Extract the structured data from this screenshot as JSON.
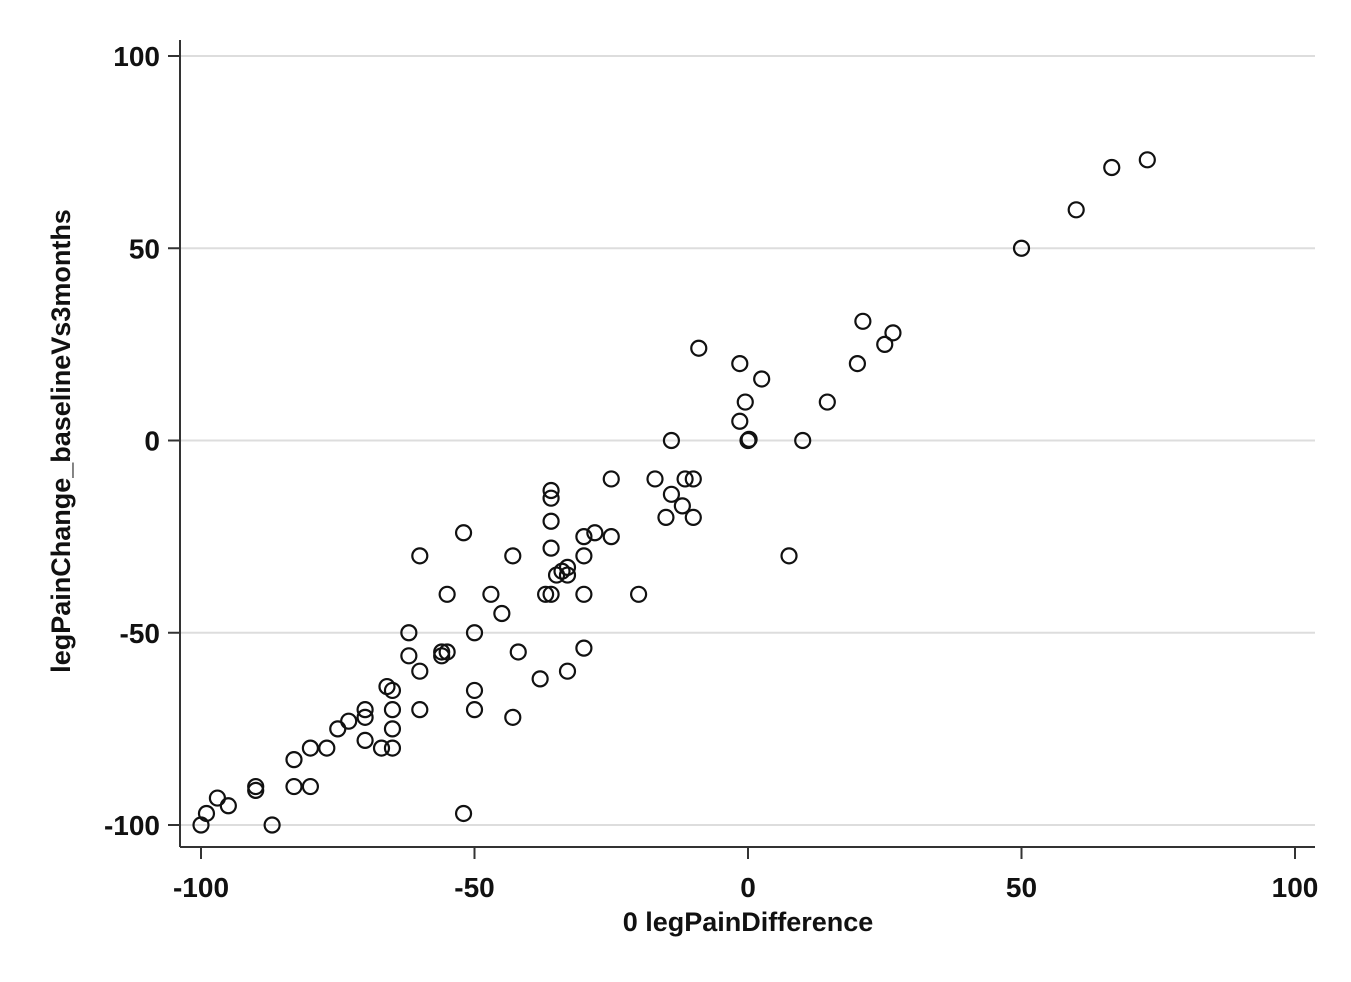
{
  "chart_data": {
    "type": "scatter",
    "title": "",
    "xlabel": "0 legPainDifference",
    "ylabel": "legPainChange_baselineVs3months",
    "xlim": [
      -100,
      100
    ],
    "ylim": [
      -100,
      100
    ],
    "x_ticks": [
      "-100",
      "-50",
      "0",
      "50",
      "100"
    ],
    "y_ticks": [
      "-100",
      "-50",
      "0",
      "50",
      "100"
    ],
    "grid": "horizontal",
    "marker": "hollow-circle",
    "colors": {
      "marker": "#111111",
      "grid": "#dddddd",
      "axis": "#333333"
    },
    "points": [
      {
        "x": -100,
        "y": -100
      },
      {
        "x": -99,
        "y": -97
      },
      {
        "x": -97,
        "y": -93
      },
      {
        "x": -95,
        "y": -95
      },
      {
        "x": -90,
        "y": -91
      },
      {
        "x": -90,
        "y": -90
      },
      {
        "x": -87,
        "y": -100
      },
      {
        "x": -83,
        "y": -83
      },
      {
        "x": -83,
        "y": -90
      },
      {
        "x": -80,
        "y": -80
      },
      {
        "x": -80,
        "y": -90
      },
      {
        "x": -77,
        "y": -80
      },
      {
        "x": -75,
        "y": -75
      },
      {
        "x": -73,
        "y": -73
      },
      {
        "x": -70,
        "y": -70
      },
      {
        "x": -70,
        "y": -72
      },
      {
        "x": -70,
        "y": -78
      },
      {
        "x": -67,
        "y": -80
      },
      {
        "x": -66,
        "y": -64
      },
      {
        "x": -65,
        "y": -65
      },
      {
        "x": -65,
        "y": -70
      },
      {
        "x": -65,
        "y": -75
      },
      {
        "x": -65,
        "y": -80
      },
      {
        "x": -62,
        "y": -50
      },
      {
        "x": -62,
        "y": -56
      },
      {
        "x": -60,
        "y": -30
      },
      {
        "x": -60,
        "y": -60
      },
      {
        "x": -60,
        "y": -70
      },
      {
        "x": -56,
        "y": -55
      },
      {
        "x": -56,
        "y": -56
      },
      {
        "x": -55,
        "y": -55
      },
      {
        "x": -55,
        "y": -40
      },
      {
        "x": -52,
        "y": -24
      },
      {
        "x": -52,
        "y": -97
      },
      {
        "x": -50,
        "y": -50
      },
      {
        "x": -50,
        "y": -65
      },
      {
        "x": -50,
        "y": -70
      },
      {
        "x": -47,
        "y": -40
      },
      {
        "x": -45,
        "y": -45
      },
      {
        "x": -43,
        "y": -30
      },
      {
        "x": -43,
        "y": -72
      },
      {
        "x": -42,
        "y": -55
      },
      {
        "x": -38,
        "y": -62
      },
      {
        "x": -37,
        "y": -40
      },
      {
        "x": -36,
        "y": -40
      },
      {
        "x": -36,
        "y": -13
      },
      {
        "x": -36,
        "y": -15
      },
      {
        "x": -36,
        "y": -21
      },
      {
        "x": -36,
        "y": -28
      },
      {
        "x": -35,
        "y": -35
      },
      {
        "x": -34,
        "y": -34
      },
      {
        "x": -33,
        "y": -35
      },
      {
        "x": -33,
        "y": -60
      },
      {
        "x": -33,
        "y": -33
      },
      {
        "x": -30,
        "y": -25
      },
      {
        "x": -30,
        "y": -30
      },
      {
        "x": -30,
        "y": -40
      },
      {
        "x": -30,
        "y": -54
      },
      {
        "x": -28,
        "y": -24
      },
      {
        "x": -25,
        "y": -25
      },
      {
        "x": -25,
        "y": -10
      },
      {
        "x": -20,
        "y": -40
      },
      {
        "x": -17,
        "y": -10
      },
      {
        "x": -15,
        "y": -20
      },
      {
        "x": -14,
        "y": 0
      },
      {
        "x": -14,
        "y": -14
      },
      {
        "x": -12,
        "y": -17
      },
      {
        "x": -11.5,
        "y": -10
      },
      {
        "x": -10,
        "y": -10
      },
      {
        "x": -10,
        "y": -20
      },
      {
        "x": -9,
        "y": 24
      },
      {
        "x": -1.5,
        "y": 5
      },
      {
        "x": -1.5,
        "y": 20
      },
      {
        "x": -0.5,
        "y": 10
      },
      {
        "x": 0,
        "y": 0
      },
      {
        "x": 0.2,
        "y": 0.3
      },
      {
        "x": 2.5,
        "y": 16
      },
      {
        "x": 7.5,
        "y": -30
      },
      {
        "x": 10,
        "y": 0
      },
      {
        "x": 14.5,
        "y": 10
      },
      {
        "x": 20,
        "y": 20
      },
      {
        "x": 21,
        "y": 31
      },
      {
        "x": 25,
        "y": 25
      },
      {
        "x": 26.5,
        "y": 28
      },
      {
        "x": 50,
        "y": 50
      },
      {
        "x": 60,
        "y": 60
      },
      {
        "x": 66.5,
        "y": 71
      },
      {
        "x": 73,
        "y": 73
      }
    ]
  }
}
